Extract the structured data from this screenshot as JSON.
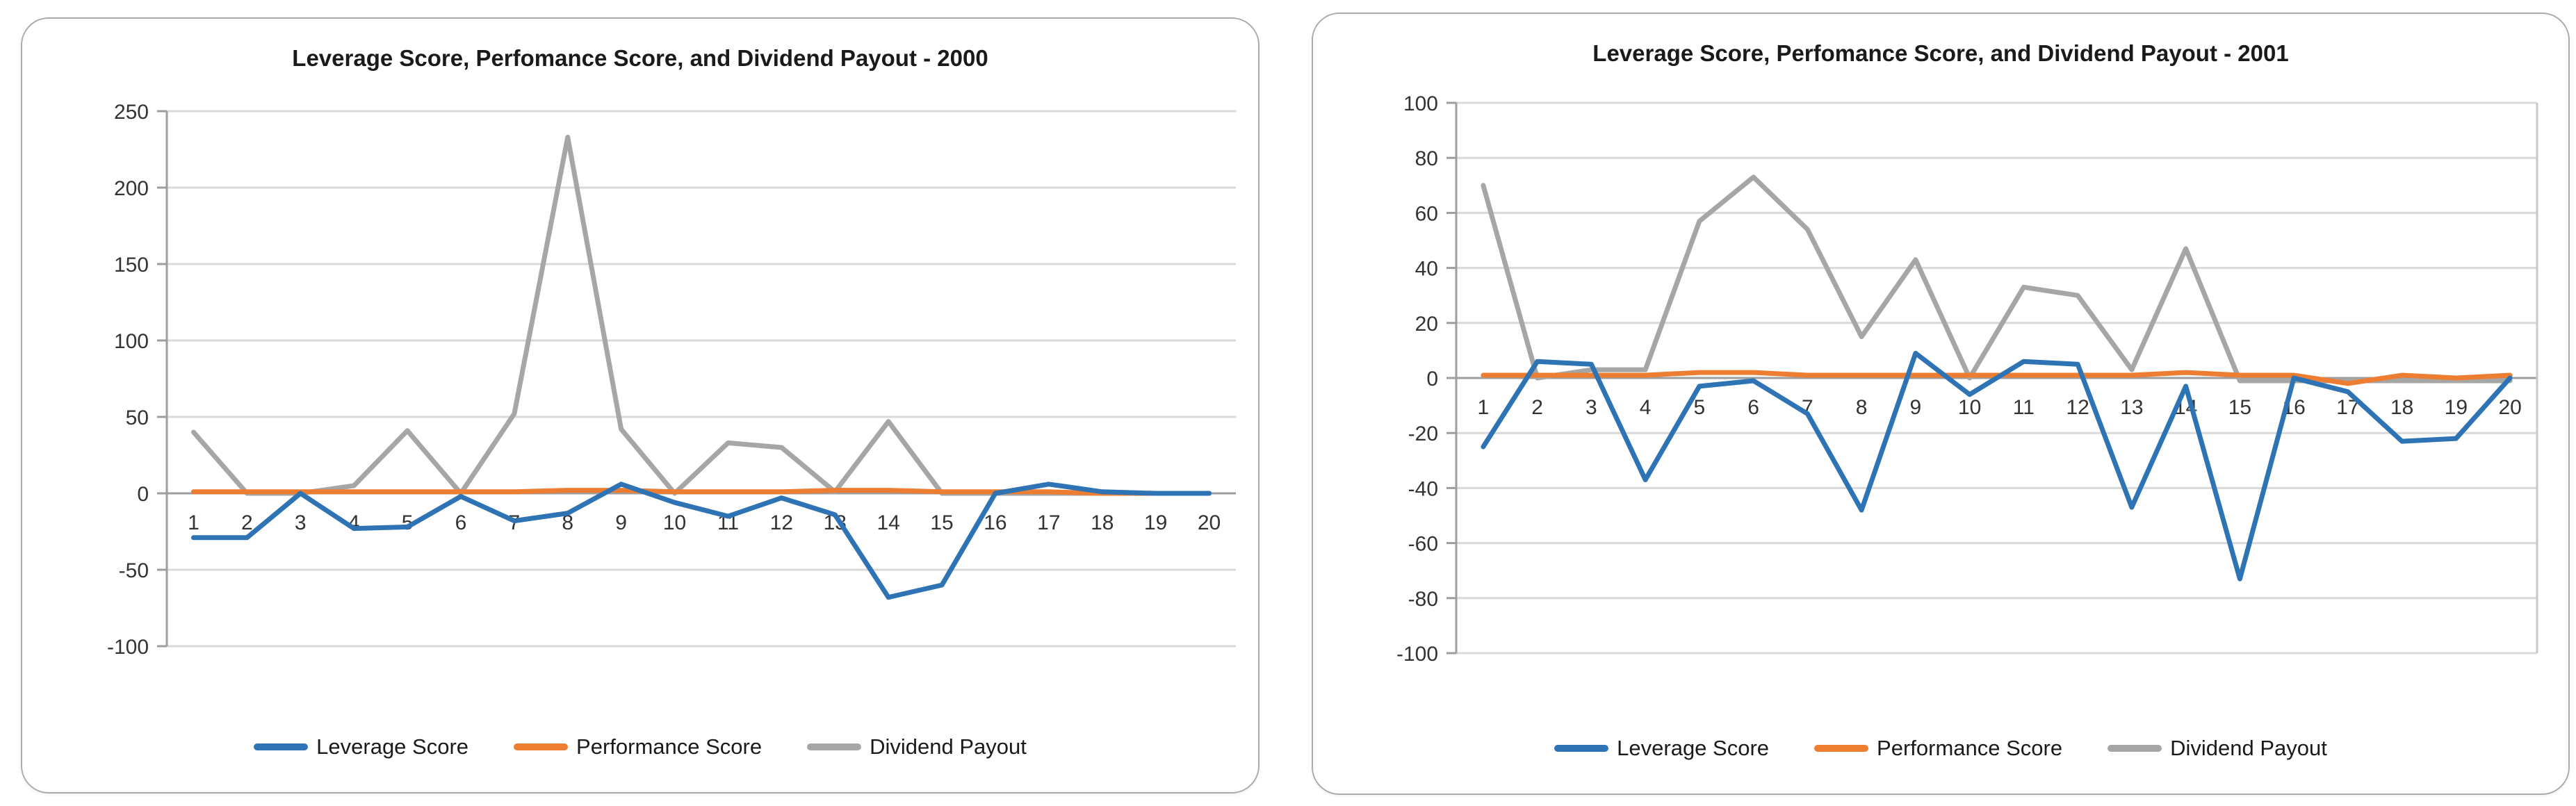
{
  "page": {
    "background": "#ffffff"
  },
  "colors": {
    "axis_line": "#9E9E9E",
    "grid_line": "#D9D9D9",
    "plot_border": "#C9C9C9",
    "tick_text": "#333333",
    "title_text": "#1a1a1a",
    "card_border": "#ABABAB"
  },
  "chart_data": [
    {
      "type": "line",
      "year": "2000",
      "title": "Leverage Score, Perfomance Score, and Dividend Payout - 2000",
      "categories": [
        "1",
        "2",
        "3",
        "4",
        "5",
        "6",
        "7",
        "8",
        "9",
        "10",
        "11",
        "12",
        "13",
        "14",
        "15",
        "16",
        "17",
        "18",
        "19",
        "20"
      ],
      "y_ticks": [
        250,
        200,
        150,
        100,
        50,
        0,
        -50,
        -100
      ],
      "ylim": [
        -100,
        250
      ],
      "grid": true,
      "legend_position": "bottom",
      "series": [
        {
          "name": "Leverage Score",
          "color": "#2E74B5",
          "values": [
            -29,
            -29,
            0,
            -23,
            -22,
            -2,
            -18,
            -13,
            6,
            -6,
            -15,
            -3,
            -14,
            -68,
            -60,
            0,
            6,
            1,
            0,
            0
          ]
        },
        {
          "name": "Performance Score",
          "color": "#ED7D31",
          "values": [
            1,
            1,
            1,
            1,
            1,
            1,
            1,
            2,
            2,
            1,
            1,
            1,
            2,
            2,
            1,
            1,
            1,
            0,
            0,
            0
          ]
        },
        {
          "name": "Dividend Payout",
          "color": "#A6A6A6",
          "values": [
            40,
            0,
            0,
            5,
            41,
            0,
            52,
            233,
            42,
            0,
            33,
            30,
            1,
            47,
            0,
            0,
            0,
            0,
            0,
            0
          ]
        }
      ]
    },
    {
      "type": "line",
      "year": "2001",
      "title": "Leverage Score, Perfomance Score, and Dividend Payout - 2001",
      "categories": [
        "1",
        "2",
        "3",
        "4",
        "5",
        "6",
        "7",
        "8",
        "9",
        "10",
        "11",
        "12",
        "13",
        "14",
        "15",
        "16",
        "17",
        "18",
        "19",
        "20"
      ],
      "y_ticks": [
        100,
        80,
        60,
        40,
        20,
        0,
        -20,
        -40,
        -60,
        -80,
        -100
      ],
      "ylim": [
        -100,
        100
      ],
      "grid": true,
      "legend_position": "bottom",
      "series": [
        {
          "name": "Leverage Score",
          "color": "#2E74B5",
          "values": [
            -25,
            6,
            5,
            -37,
            -3,
            -1,
            -13,
            -48,
            9,
            -6,
            6,
            5,
            -47,
            -3,
            -73,
            0,
            -5,
            -23,
            -22,
            0
          ]
        },
        {
          "name": "Performance Score",
          "color": "#ED7D31",
          "values": [
            1,
            1,
            1,
            1,
            2,
            2,
            1,
            1,
            1,
            1,
            1,
            1,
            1,
            2,
            1,
            1,
            -2,
            1,
            0,
            1
          ]
        },
        {
          "name": "Dividend Payout",
          "color": "#A6A6A6",
          "values": [
            70,
            0,
            3,
            3,
            57,
            73,
            54,
            15,
            43,
            0,
            33,
            30,
            3,
            47,
            -1,
            -1,
            -1,
            -1,
            -1,
            -1
          ]
        }
      ]
    }
  ]
}
